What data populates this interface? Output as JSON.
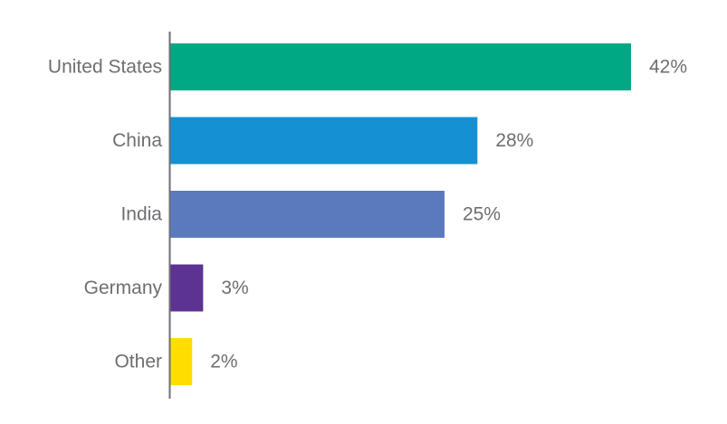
{
  "chart_data": {
    "type": "bar",
    "orientation": "horizontal",
    "title": "",
    "xlabel": "",
    "ylabel": "",
    "xlim": [
      0,
      42
    ],
    "grid": false,
    "legend": "none",
    "categories": [
      "United States",
      "China",
      "India",
      "Germany",
      "Other"
    ],
    "values": [
      42,
      28,
      25,
      3,
      2
    ],
    "value_labels": [
      "42%",
      "28%",
      "25%",
      "3%",
      "2%"
    ],
    "colors": [
      "#00a884",
      "#1590d3",
      "#5a7abd",
      "#5c3292",
      "#ffdd00"
    ]
  }
}
